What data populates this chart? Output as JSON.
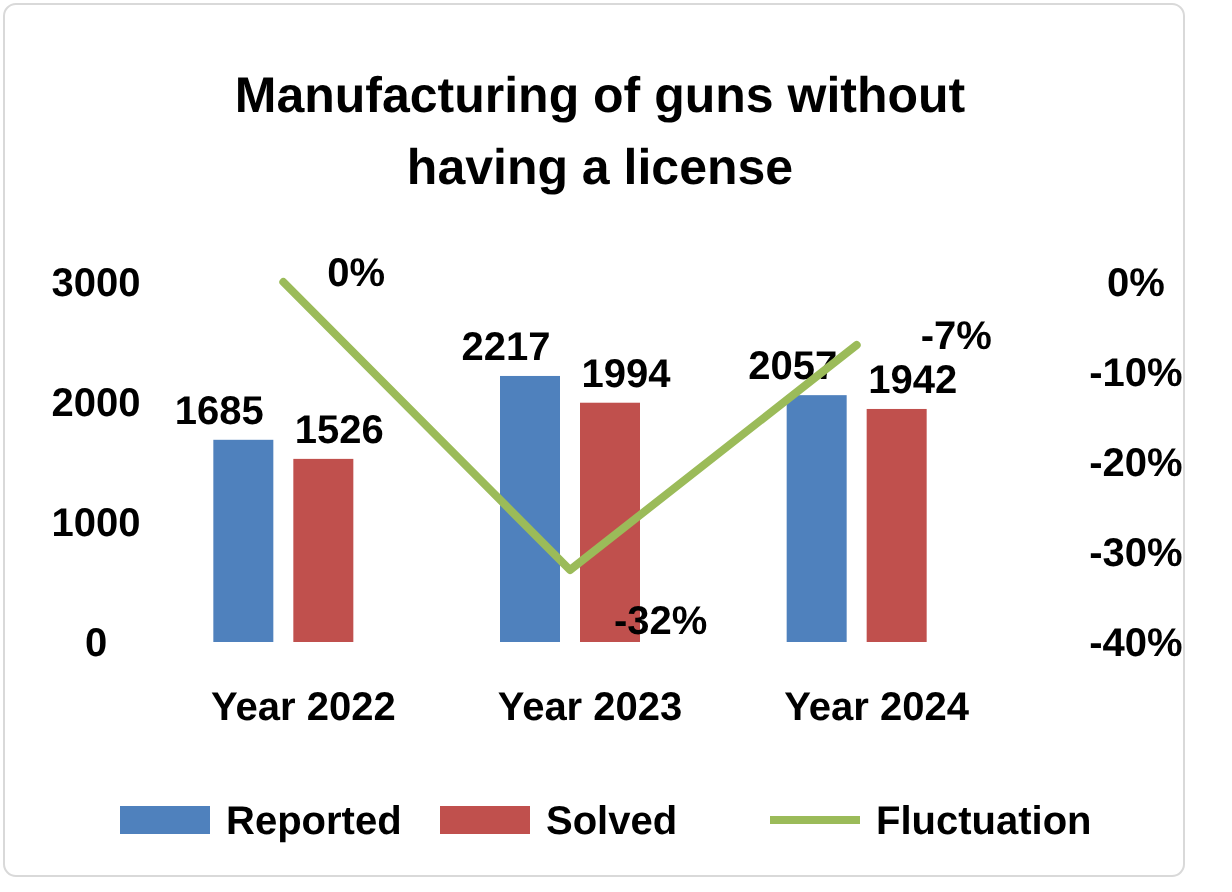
{
  "chart_data": {
    "type": "bar",
    "title": "Manufacturing of guns without having a license",
    "categories": [
      "Year 2022",
      "Year 2023",
      "Year 2024"
    ],
    "series": [
      {
        "name": "Reported",
        "color": "#4f81bd",
        "values": [
          1685,
          2217,
          2057
        ],
        "value_labels": [
          "1685",
          "2217",
          "2057"
        ]
      },
      {
        "name": "Solved",
        "color": "#c0504d",
        "values": [
          1526,
          1994,
          1942
        ],
        "value_labels": [
          "1526",
          "1994",
          "1942"
        ]
      },
      {
        "name": "Fluctuation",
        "type": "line",
        "axis": "y2",
        "color": "#9bbb59",
        "values": [
          0,
          -32,
          -7
        ],
        "value_labels": [
          "0%",
          "-32%",
          "-7%"
        ]
      }
    ],
    "ylim": [
      0,
      3000
    ],
    "yticks": [
      0,
      1000,
      2000,
      3000
    ],
    "y2lim": [
      -40,
      0
    ],
    "y2ticks": [
      {
        "value": 0,
        "label": "0%"
      },
      {
        "value": -10,
        "label": "-10%"
      },
      {
        "value": -20,
        "label": "-20%"
      },
      {
        "value": -30,
        "label": "-30%"
      },
      {
        "value": -40,
        "label": "-40%"
      }
    ],
    "legend": "bottom",
    "grid": false
  }
}
